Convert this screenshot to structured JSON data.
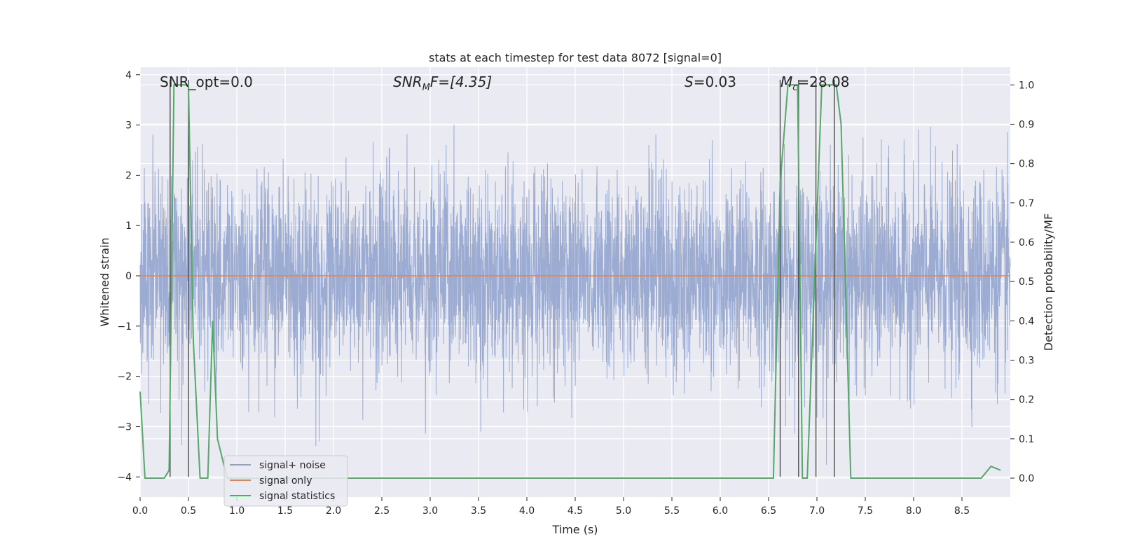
{
  "chart_data": {
    "type": "line",
    "title": "stats at each timestep for test data 8072 [signal=0]",
    "xlabel": "Time (s)",
    "ylabel": "Whitened strain",
    "ylabel_right": "Detection probability/MF",
    "xlim": [
      0.0,
      9.0
    ],
    "ylim": [
      -4.4,
      4.15
    ],
    "ylim_right": [
      -0.048,
      1.045
    ],
    "x_ticks": [
      "0.0",
      "0.5",
      "1.0",
      "1.5",
      "2.0",
      "2.5",
      "3.0",
      "3.5",
      "4.0",
      "4.5",
      "5.0",
      "5.5",
      "6.0",
      "6.5",
      "7.0",
      "7.5",
      "8.0",
      "8.5"
    ],
    "y_ticks": [
      "4",
      "3",
      "2",
      "1",
      "0",
      "−1",
      "−2",
      "−3",
      "−4"
    ],
    "y_ticks_right": [
      "1.0",
      "0.9",
      "0.8",
      "0.7",
      "0.6",
      "0.5",
      "0.4",
      "0.3",
      "0.2",
      "0.1",
      "0.0"
    ],
    "grid": true,
    "legend_position": "lower-left",
    "colors": {
      "signal_noise": "#8da0cb",
      "signal_only": "#dd8452",
      "signal_statistics": "#55a868",
      "markers": "#555555",
      "background": "#eaeaf2"
    },
    "annotations": [
      {
        "text": "SNR_opt=0.0",
        "x": 0.2
      },
      {
        "text_main": "SNR",
        "text_sub": "M",
        "text_tail": "F=[4.35]",
        "x": 2.6
      },
      {
        "text_main": "S",
        "text_tail": "=0.03",
        "x": 5.6
      },
      {
        "text_main": "M",
        "text_sub": "c",
        "text_tail": "=28.08",
        "x": 6.6
      }
    ],
    "series": [
      {
        "name": "signal+ noise",
        "kind": "noise",
        "description_note": "",
        "amplitude_std": 1.0,
        "x_range": [
          0.0,
          9.0
        ]
      },
      {
        "name": "signal only",
        "kind": "flat",
        "y": 0.0
      },
      {
        "name": "signal statistics",
        "kind": "line",
        "axis": "right",
        "x": [
          0.0,
          0.05,
          0.25,
          0.3,
          0.35,
          0.5,
          0.55,
          0.62,
          0.7,
          0.75,
          0.8,
          0.9,
          1.0,
          5.5,
          6.55,
          6.62,
          6.7,
          6.8,
          6.85,
          6.9,
          7.05,
          7.2,
          7.25,
          7.35,
          8.7,
          8.8,
          8.9
        ],
        "y": [
          0.22,
          0.0,
          0.0,
          0.02,
          1.0,
          1.0,
          0.35,
          0.0,
          0.0,
          0.4,
          0.1,
          0.0,
          0.0,
          0.0,
          0.0,
          0.75,
          1.0,
          1.0,
          0.0,
          0.0,
          1.0,
          1.0,
          0.9,
          0.0,
          0.0,
          0.03,
          0.02
        ]
      }
    ],
    "markers": {
      "x": [
        0.31,
        0.5,
        6.62,
        6.81,
        6.99,
        7.18
      ],
      "y_top": 3.9,
      "y_bottom": -4.0
    }
  }
}
